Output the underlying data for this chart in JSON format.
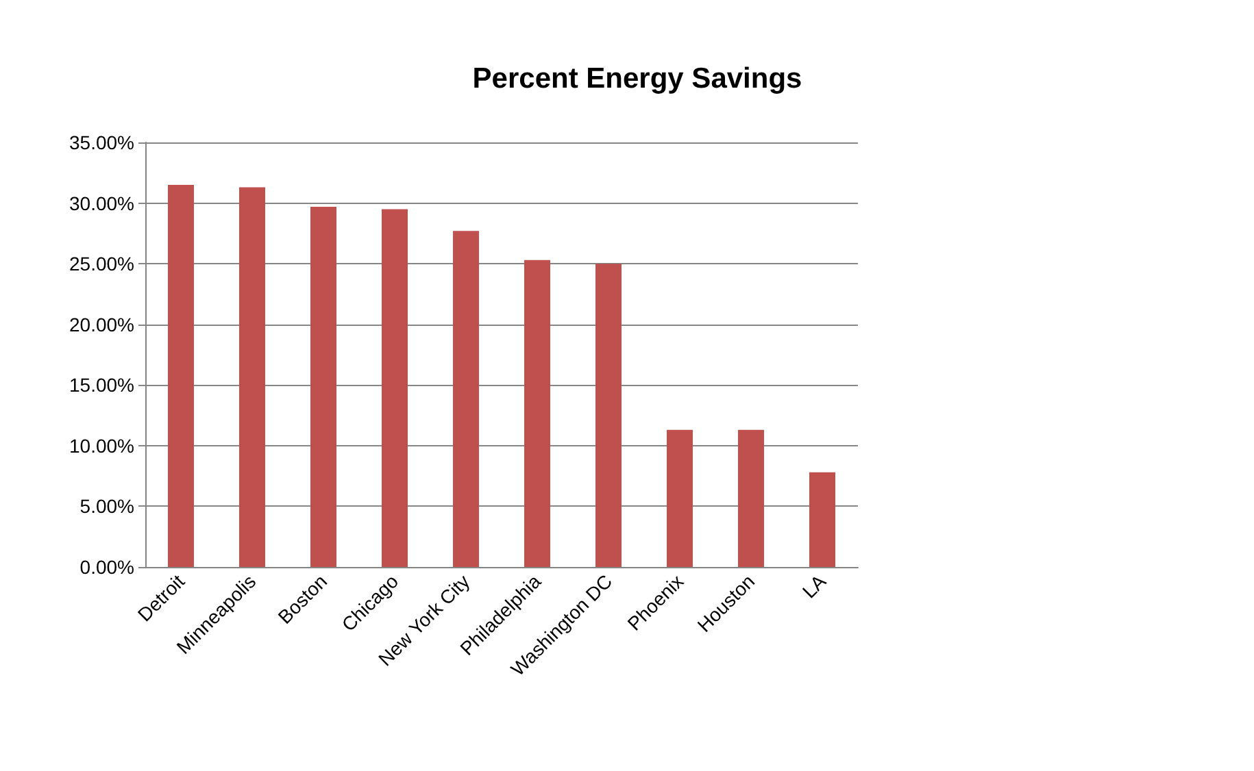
{
  "chart_data": {
    "type": "bar",
    "title": "Percent Energy Savings",
    "categories": [
      "Detroit",
      "Minneapolis",
      "Boston",
      "Chicago",
      "New York City",
      "Philadelphia",
      "Washington DC",
      "Phoenix",
      "Houston",
      "LA"
    ],
    "series": [
      {
        "color": "#c0504d",
        "values": [
          31.5,
          31.3,
          29.7,
          29.5,
          27.7,
          25.3,
          25.0,
          11.3,
          11.3,
          7.8
        ]
      }
    ],
    "ylim": [
      0,
      35
    ],
    "yticks": [
      {
        "value": 0,
        "label": "0.00%"
      },
      {
        "value": 5,
        "label": "5.00%"
      },
      {
        "value": 10,
        "label": "10.00%"
      },
      {
        "value": 15,
        "label": "15.00%"
      },
      {
        "value": 20,
        "label": "20.00%"
      },
      {
        "value": 25,
        "label": "25.00%"
      },
      {
        "value": 30,
        "label": "30.00%"
      },
      {
        "value": 35,
        "label": "35.00%"
      }
    ],
    "grid": "y"
  }
}
